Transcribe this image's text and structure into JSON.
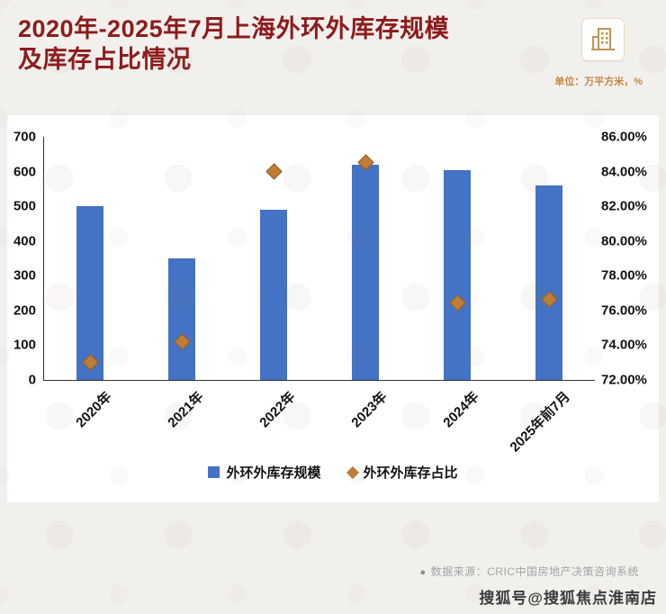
{
  "header": {
    "title_line1": "2020年-2025年7月上海外环外库存规模",
    "title_line2": "及库存占比情况",
    "unit_note": "单位：万平方米，%"
  },
  "chart_data": {
    "type": "combo",
    "categories": [
      "2020年",
      "2021年",
      "2022年",
      "2023年",
      "2024年",
      "2025年前7月"
    ],
    "series": [
      {
        "name": "外环外库存规模",
        "type": "bar",
        "axis": "left",
        "color": "#4472c4",
        "values": [
          500,
          350,
          490,
          620,
          605,
          560
        ]
      },
      {
        "name": "外环外库存占比",
        "type": "scatter",
        "marker": "diamond",
        "axis": "right",
        "color": "#bf7d35",
        "values": [
          73.0,
          74.2,
          84.0,
          84.5,
          76.4,
          76.6
        ]
      }
    ],
    "left_axis": {
      "min": 0,
      "max": 700,
      "step": 100,
      "ticks": [
        "700",
        "600",
        "500",
        "400",
        "300",
        "200",
        "100",
        "0"
      ]
    },
    "right_axis": {
      "min": 72,
      "max": 86,
      "step": 2,
      "ticks": [
        "86.00%",
        "84.00%",
        "82.00%",
        "80.00%",
        "78.00%",
        "76.00%",
        "74.00%",
        "72.00%"
      ]
    },
    "legend": [
      {
        "label": "外环外库存规模",
        "marker": "square",
        "color": "#4472c4"
      },
      {
        "label": "外环外库存占比",
        "marker": "diamond",
        "color": "#bf7d35"
      }
    ],
    "grid": false,
    "title": "2020年-2025年7月上海外环外库存规模及库存占比情况",
    "ylabel_left": "万平方米",
    "ylabel_right": "%"
  },
  "footer": {
    "bullet": "●",
    "source": "数据来源：CRIC中国房地产决策咨询系统"
  },
  "watermark": {
    "credit": "搜狐号@搜狐焦点淮南店"
  }
}
